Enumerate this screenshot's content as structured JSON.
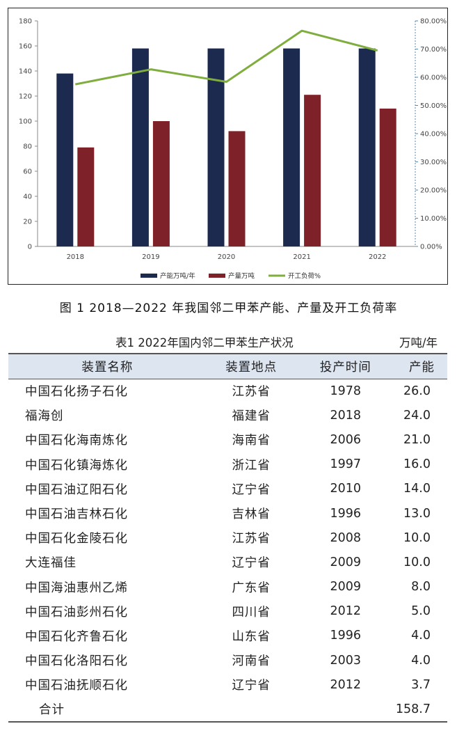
{
  "chart_data": {
    "type": "bar",
    "categories": [
      "2018",
      "2019",
      "2020",
      "2021",
      "2022"
    ],
    "series": [
      {
        "name": "产能万吨/年",
        "type": "bar",
        "axis": "left",
        "color": "#1b2a4e",
        "values": [
          138,
          158,
          158,
          158,
          158
        ]
      },
      {
        "name": "产量万吨",
        "type": "bar",
        "axis": "left",
        "color": "#7f2128",
        "values": [
          79,
          100,
          92,
          121,
          110
        ]
      },
      {
        "name": "开工负荷%",
        "type": "line",
        "axis": "right",
        "color": "#7fad3e",
        "values": [
          57.5,
          62.8,
          58.4,
          76.5,
          69.5
        ]
      }
    ],
    "ylim": [
      0,
      180
    ],
    "yticks": [
      "0",
      "20",
      "40",
      "60",
      "80",
      "100",
      "120",
      "140",
      "160",
      "180"
    ],
    "y2lim": [
      0,
      80
    ],
    "y2ticks": [
      "0.00%",
      "10.00%",
      "20.00%",
      "30.00%",
      "40.00%",
      "50.00%",
      "60.00%",
      "70.00%",
      "80.00%"
    ],
    "grid": false,
    "legend_position": "bottom"
  },
  "figure": {
    "caption": "图 1  2018—2022 年我国邻二甲苯产能、产量及开工负荷率"
  },
  "table": {
    "title": "表1  2022年国内邻二甲苯生产状况",
    "unit": "万吨/年",
    "headers": [
      "装置名称",
      "装置地点",
      "投产时间",
      "产能"
    ],
    "rows": [
      [
        "中国石化扬子石化",
        "江苏省",
        "1978",
        "26.0"
      ],
      [
        "福海创",
        "福建省",
        "2018",
        "24.0"
      ],
      [
        "中国石化海南炼化",
        "海南省",
        "2006",
        "21.0"
      ],
      [
        "中国石化镇海炼化",
        "浙江省",
        "1997",
        "16.0"
      ],
      [
        "中国石油辽阳石化",
        "辽宁省",
        "2010",
        "14.0"
      ],
      [
        "中国石油吉林石化",
        "吉林省",
        "1996",
        "13.0"
      ],
      [
        "中国石化金陵石化",
        "江苏省",
        "2008",
        "10.0"
      ],
      [
        "大连福佳",
        "辽宁省",
        "2009",
        "10.0"
      ],
      [
        "中国海油惠州乙烯",
        "广东省",
        "2009",
        "8.0"
      ],
      [
        "中国石油彭州石化",
        "四川省",
        "2012",
        "5.0"
      ],
      [
        "中国石化齐鲁石化",
        "山东省",
        "1996",
        "4.0"
      ],
      [
        "中国石化洛阳石化",
        "河南省",
        "2003",
        "4.0"
      ],
      [
        "中国石油抚顺石化",
        "辽宁省",
        "2012",
        "3.7"
      ]
    ],
    "total_label": "合计",
    "total_value": "158.7"
  }
}
